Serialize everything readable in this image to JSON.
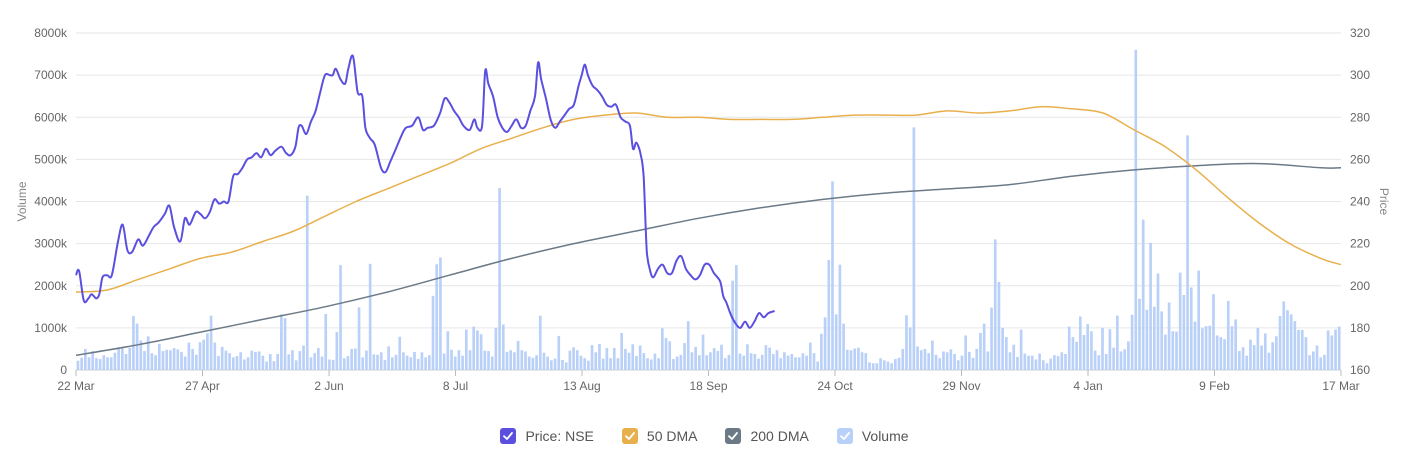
{
  "chart_data": {
    "type": "line+bar",
    "left_axis": {
      "title": "Volume",
      "ticks": [
        "0",
        "1000k",
        "2000k",
        "3000k",
        "4000k",
        "5000k",
        "6000k",
        "7000k",
        "8000k"
      ],
      "range": [
        0,
        8000
      ]
    },
    "right_axis": {
      "title": "Price",
      "ticks": [
        "160",
        "180",
        "200",
        "220",
        "240",
        "260",
        "280",
        "300",
        "320"
      ],
      "range": [
        160,
        320
      ]
    },
    "x_ticks": [
      "22 Mar",
      "27 Apr",
      "2 Jun",
      "8 Jul",
      "13 Aug",
      "18 Sep",
      "24 Oct",
      "29 Nov",
      "4 Jan",
      "9 Feb",
      "17 Mar"
    ],
    "x_range_days": [
      0,
      360
    ],
    "grid": true,
    "legend_position": "bottom-center",
    "series": [
      {
        "name": "Price: NSE",
        "axis": "right",
        "type": "line",
        "color": "#5b4fe0",
        "points": [
          [
            0,
            205
          ],
          [
            2,
            207
          ],
          [
            5,
            193
          ],
          [
            8,
            194
          ],
          [
            10,
            196
          ],
          [
            13,
            194
          ],
          [
            15,
            196
          ],
          [
            17,
            204
          ],
          [
            20,
            205
          ],
          [
            23,
            205
          ],
          [
            27,
            221
          ],
          [
            30,
            229
          ],
          [
            33,
            217
          ],
          [
            36,
            216
          ],
          [
            40,
            222
          ],
          [
            43,
            219
          ],
          [
            47,
            224
          ],
          [
            50,
            228
          ],
          [
            53,
            230
          ],
          [
            57,
            234
          ],
          [
            60,
            238
          ],
          [
            63,
            228
          ],
          [
            67,
            221
          ],
          [
            70,
            232
          ],
          [
            73,
            229
          ],
          [
            77,
            235
          ],
          [
            80,
            234
          ],
          [
            83,
            232
          ],
          [
            86,
            235
          ],
          [
            89,
            241
          ],
          [
            92,
            239
          ],
          [
            95,
            240
          ],
          [
            98,
            240
          ],
          [
            101,
            252
          ],
          [
            104,
            253
          ],
          [
            107,
            256
          ],
          [
            110,
            260
          ],
          [
            113,
            261
          ],
          [
            116,
            263
          ],
          [
            119,
            261
          ],
          [
            122,
            265
          ],
          [
            125,
            262
          ],
          [
            128,
            264
          ],
          [
            132,
            266
          ],
          [
            135,
            263
          ],
          [
            138,
            262
          ],
          [
            141,
            266
          ],
          [
            143,
            275
          ],
          [
            145,
            276
          ],
          [
            148,
            272
          ],
          [
            151,
            278
          ],
          [
            154,
            283
          ],
          [
            157,
            292
          ],
          [
            160,
            300
          ],
          [
            163,
            300
          ],
          [
            165,
            300
          ],
          [
            167,
            303
          ],
          [
            170,
            298
          ],
          [
            173,
            296
          ],
          [
            175,
            303
          ],
          [
            178,
            309
          ],
          [
            181,
            292
          ],
          [
            184,
            290
          ],
          [
            186,
            275
          ],
          [
            189,
            270
          ],
          [
            192,
            267
          ],
          [
            196,
            256
          ],
          [
            199,
            254
          ],
          [
            202,
            259
          ],
          [
            205,
            264
          ],
          [
            209,
            271
          ],
          [
            212,
            275
          ],
          [
            216,
            276
          ],
          [
            220,
            280
          ],
          [
            223,
            274
          ],
          [
            226,
            275
          ],
          [
            230,
            276
          ],
          [
            234,
            282
          ],
          [
            237,
            289
          ],
          [
            240,
            287
          ],
          [
            243,
            283
          ],
          [
            246,
            280
          ],
          [
            249,
            276
          ],
          [
            253,
            274
          ],
          [
            256,
            279
          ],
          [
            258,
            275
          ],
          [
            261,
            276
          ],
          [
            263,
            302
          ],
          [
            265,
            296
          ],
          [
            268,
            290
          ],
          [
            271,
            280
          ],
          [
            274,
            275
          ],
          [
            277,
            273
          ],
          [
            280,
            276
          ],
          [
            283,
            279
          ],
          [
            286,
            275
          ],
          [
            289,
            276
          ],
          [
            292,
            283
          ],
          [
            295,
            290
          ],
          [
            297,
            306
          ],
          [
            299,
            298
          ],
          [
            302,
            289
          ],
          [
            305,
            279
          ],
          [
            308,
            275
          ],
          [
            311,
            278
          ],
          [
            314,
            281
          ],
          [
            317,
            284
          ],
          [
            320,
            286
          ],
          [
            323,
            295
          ],
          [
            325,
            300
          ],
          [
            327,
            305
          ],
          [
            329,
            300
          ],
          [
            332,
            295
          ],
          [
            335,
            293
          ],
          [
            338,
            290
          ],
          [
            341,
            286
          ],
          [
            344,
            285
          ],
          [
            347,
            286
          ],
          [
            350,
            280
          ],
          [
            353,
            278
          ],
          [
            356,
            276
          ],
          [
            358,
            265
          ],
          [
            360,
            268
          ],
          [
            362,
            265
          ],
          [
            363,
            262
          ],
          [
            364,
            258
          ],
          [
            365,
            250
          ],
          [
            366,
            230
          ],
          [
            367,
            215
          ],
          [
            369,
            207
          ],
          [
            371,
            204
          ],
          [
            374,
            208
          ],
          [
            377,
            210
          ],
          [
            380,
            206
          ],
          [
            383,
            206
          ],
          [
            386,
            212
          ],
          [
            389,
            214
          ],
          [
            392,
            208
          ],
          [
            395,
            205
          ],
          [
            398,
            203
          ],
          [
            401,
            205
          ],
          [
            404,
            210
          ],
          [
            407,
            210
          ],
          [
            410,
            206
          ],
          [
            414,
            202
          ],
          [
            416,
            195
          ],
          [
            418,
            192
          ],
          [
            421,
            186
          ],
          [
            424,
            182
          ],
          [
            427,
            180
          ],
          [
            430,
            183
          ],
          [
            433,
            180
          ],
          [
            436,
            183
          ],
          [
            439,
            187
          ],
          [
            442,
            185
          ],
          [
            445,
            187
          ],
          [
            449,
            188
          ]
        ]
      },
      {
        "name": "50 DMA",
        "axis": "right",
        "type": "line",
        "color": "#e8b04d",
        "points": [
          [
            0,
            197
          ],
          [
            20,
            198
          ],
          [
            40,
            203
          ],
          [
            60,
            208
          ],
          [
            80,
            213
          ],
          [
            100,
            216
          ],
          [
            120,
            221
          ],
          [
            140,
            226
          ],
          [
            160,
            233
          ],
          [
            180,
            240
          ],
          [
            200,
            246
          ],
          [
            220,
            252
          ],
          [
            240,
            258
          ],
          [
            260,
            265
          ],
          [
            280,
            270
          ],
          [
            300,
            275
          ],
          [
            320,
            279
          ],
          [
            340,
            281
          ],
          [
            360,
            282
          ],
          [
            380,
            280
          ],
          [
            400,
            280
          ],
          [
            420,
            279
          ],
          [
            440,
            279
          ],
          [
            460,
            279
          ],
          [
            480,
            280
          ],
          [
            500,
            281
          ],
          [
            520,
            281
          ],
          [
            540,
            281
          ],
          [
            560,
            283
          ],
          [
            580,
            282
          ],
          [
            600,
            283
          ],
          [
            620,
            285
          ],
          [
            640,
            284
          ],
          [
            660,
            282
          ],
          [
            680,
            274
          ],
          [
            700,
            266
          ],
          [
            720,
            255
          ],
          [
            740,
            242
          ],
          [
            760,
            230
          ],
          [
            780,
            220
          ],
          [
            800,
            213
          ],
          [
            813,
            210
          ]
        ]
      },
      {
        "name": "200 DMA",
        "axis": "right",
        "type": "line",
        "color": "#6b7a86",
        "points": [
          [
            0,
            167
          ],
          [
            40,
            172
          ],
          [
            80,
            178
          ],
          [
            120,
            184
          ],
          [
            160,
            190
          ],
          [
            200,
            197
          ],
          [
            240,
            205
          ],
          [
            280,
            213
          ],
          [
            320,
            220
          ],
          [
            360,
            226
          ],
          [
            400,
            232
          ],
          [
            440,
            237
          ],
          [
            480,
            241
          ],
          [
            520,
            244
          ],
          [
            560,
            246
          ],
          [
            600,
            248
          ],
          [
            640,
            252
          ],
          [
            680,
            255
          ],
          [
            720,
            257
          ],
          [
            760,
            258
          ],
          [
            800,
            256
          ],
          [
            813,
            256
          ]
        ]
      },
      {
        "name": "Volume",
        "axis": "left",
        "type": "bar",
        "color": "#b9d0f8",
        "values": [
          220,
          290,
          500,
          300,
          450,
          280,
          260,
          350,
          300,
          300,
          410,
          540,
          520,
          380,
          530,
          1280,
          1100,
          700,
          450,
          800,
          400,
          350,
          620,
          450,
          480,
          470,
          520,
          490,
          430,
          320,
          650,
          500,
          360,
          660,
          720,
          870,
          1290,
          650,
          330,
          550,
          460,
          400,
          300,
          330,
          420,
          250,
          300,
          460,
          430,
          440,
          340,
          200,
          380,
          210,
          380,
          1320,
          1230,
          370,
          470,
          230,
          450,
          580,
          4140,
          300,
          400,
          520,
          320,
          1330,
          250,
          240,
          900,
          2490,
          280,
          330,
          500,
          510,
          1490,
          300,
          460,
          2520,
          370,
          360,
          420,
          240,
          560,
          300,
          360,
          790,
          420,
          340,
          300,
          430,
          260,
          420,
          300,
          350,
          1760,
          2510,
          2670,
          390,
          920,
          480,
          320,
          470,
          340,
          960,
          470,
          1030,
          940,
          850,
          460,
          450,
          320,
          1000,
          4320,
          1080,
          430,
          470,
          420,
          690,
          470,
          440,
          320,
          290,
          350,
          1290,
          410,
          320,
          230,
          270,
          810,
          240,
          180,
          460,
          540,
          470,
          340,
          280,
          220,
          590,
          420,
          620,
          270,
          520,
          280,
          520,
          280,
          880,
          500,
          410,
          610,
          330,
          580,
          400,
          280,
          250,
          390,
          280,
          990,
          760,
          680,
          260,
          320,
          360,
          640,
          1160,
          420,
          550,
          350,
          840,
          350,
          420,
          520,
          450,
          600,
          280,
          360,
          2120,
          2490,
          390,
          340,
          610,
          400,
          380,
          270,
          360,
          590,
          530,
          380,
          470,
          280,
          420,
          340,
          380,
          300,
          300,
          400,
          340,
          650,
          400,
          200,
          860,
          1250,
          2610,
          4480,
          1320,
          2500,
          1100,
          480,
          470,
          510,
          530,
          420,
          400,
          180,
          160,
          160,
          280,
          230,
          200,
          160,
          260,
          290,
          500,
          1300,
          1010,
          5760,
          560,
          470,
          500,
          400,
          700,
          360,
          280,
          440,
          420,
          490,
          380,
          230,
          340,
          820,
          430,
          290,
          500,
          880,
          1100,
          440,
          1480,
          3100,
          2090,
          1000,
          780,
          420,
          600,
          310,
          960,
          390,
          340,
          340,
          250,
          390,
          230,
          160,
          270,
          350,
          330,
          420,
          380,
          1030,
          780,
          670,
          1270,
          830,
          1090,
          920,
          460,
          350,
          1000,
          380,
          970,
          530,
          1290,
          440,
          490,
          680,
          1310,
          7600,
          1690,
          3570,
          1430,
          3020,
          1500,
          2290,
          1390,
          840,
          1600,
          920,
          910,
          2310,
          1780,
          5570,
          1960,
          1150,
          2360,
          990,
          1040,
          1050,
          1800,
          820,
          780,
          730,
          1640,
          1040,
          1200,
          450,
          540,
          340,
          720,
          590,
          1000,
          580,
          870,
          410,
          660,
          800,
          1280,
          1630,
          1420,
          1320,
          1160,
          950,
          950,
          780,
          350,
          440,
          580,
          300,
          360,
          940,
          820,
          960,
          1030
        ]
      }
    ],
    "legend": [
      {
        "label": "Price: NSE",
        "color": "#5b4fe0"
      },
      {
        "label": "50 DMA",
        "color": "#e8b04d"
      },
      {
        "label": "200 DMA",
        "color": "#6b7a86"
      },
      {
        "label": "Volume",
        "color": "#b9d0f8"
      }
    ]
  }
}
